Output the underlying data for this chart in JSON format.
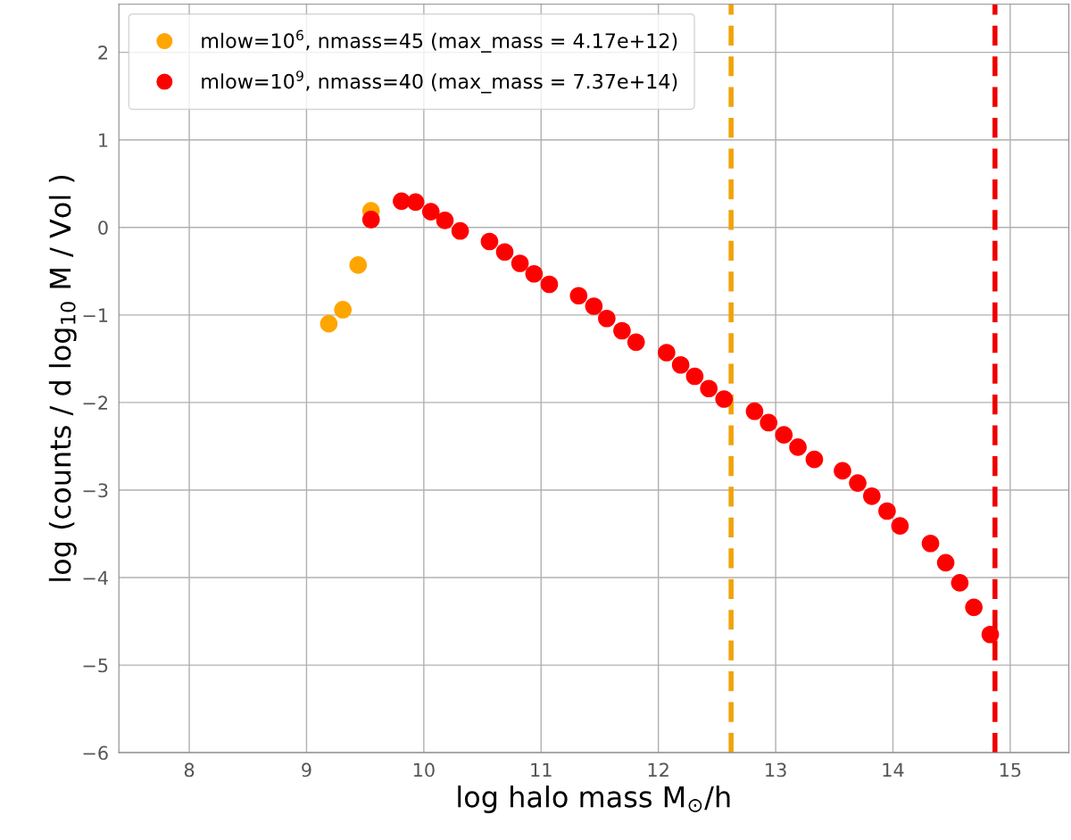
{
  "chart_data": {
    "type": "scatter",
    "xlabel": "log halo mass M$_{⊙}$/h",
    "ylabel": "log (counts / d log$_{10}$ M / Vol )",
    "xlim": [
      7.4,
      15.5
    ],
    "xticks": [
      8,
      9,
      10,
      11,
      12,
      13,
      14,
      15
    ],
    "ylim": [
      -6,
      2.55
    ],
    "yticks": [
      -6,
      -5,
      -4,
      -3,
      -2,
      -1,
      0,
      1,
      2
    ],
    "grid": true,
    "legend": "top left",
    "marker": "circle",
    "series": [
      {
        "name": "mlow=10$^{6}$, nmass=45 (max_mass = 4.17e+12)",
        "color": "#ffa500",
        "x": [
          9.19,
          9.31,
          9.44,
          9.55
        ],
        "values": [
          -1.1,
          -0.94,
          -0.43,
          0.19
        ]
      },
      {
        "name": "mlow=10$^{9}$, nmass=40 (max_mass = 7.37e+14)",
        "color": "#ff0000",
        "x": [
          9.55,
          9.81,
          9.93,
          10.06,
          10.18,
          10.31,
          10.56,
          10.69,
          10.82,
          10.94,
          11.07,
          11.32,
          11.45,
          11.56,
          11.69,
          11.81,
          12.07,
          12.19,
          12.31,
          12.43,
          12.56,
          12.82,
          12.94,
          13.07,
          13.19,
          13.33,
          13.57,
          13.7,
          13.82,
          13.95,
          14.06,
          14.32,
          14.45,
          14.57,
          14.69,
          14.83
        ],
        "values": [
          0.09,
          0.3,
          0.29,
          0.18,
          0.08,
          -0.04,
          -0.16,
          -0.28,
          -0.41,
          -0.53,
          -0.65,
          -0.78,
          -0.9,
          -1.04,
          -1.18,
          -1.31,
          -1.43,
          -1.57,
          -1.7,
          -1.84,
          -1.96,
          -2.1,
          -2.23,
          -2.37,
          -2.51,
          -2.65,
          -2.78,
          -2.92,
          -3.07,
          -3.24,
          -3.41,
          -3.61,
          -3.83,
          -4.06,
          -4.34,
          -4.65
        ]
      }
    ],
    "ref_lines": [
      {
        "axis": "x",
        "value": 12.62,
        "color": "#f0a30a",
        "line_style": "dashed"
      },
      {
        "axis": "x",
        "value": 14.87,
        "color": "#ee0000",
        "line_style": "dashed"
      }
    ]
  }
}
